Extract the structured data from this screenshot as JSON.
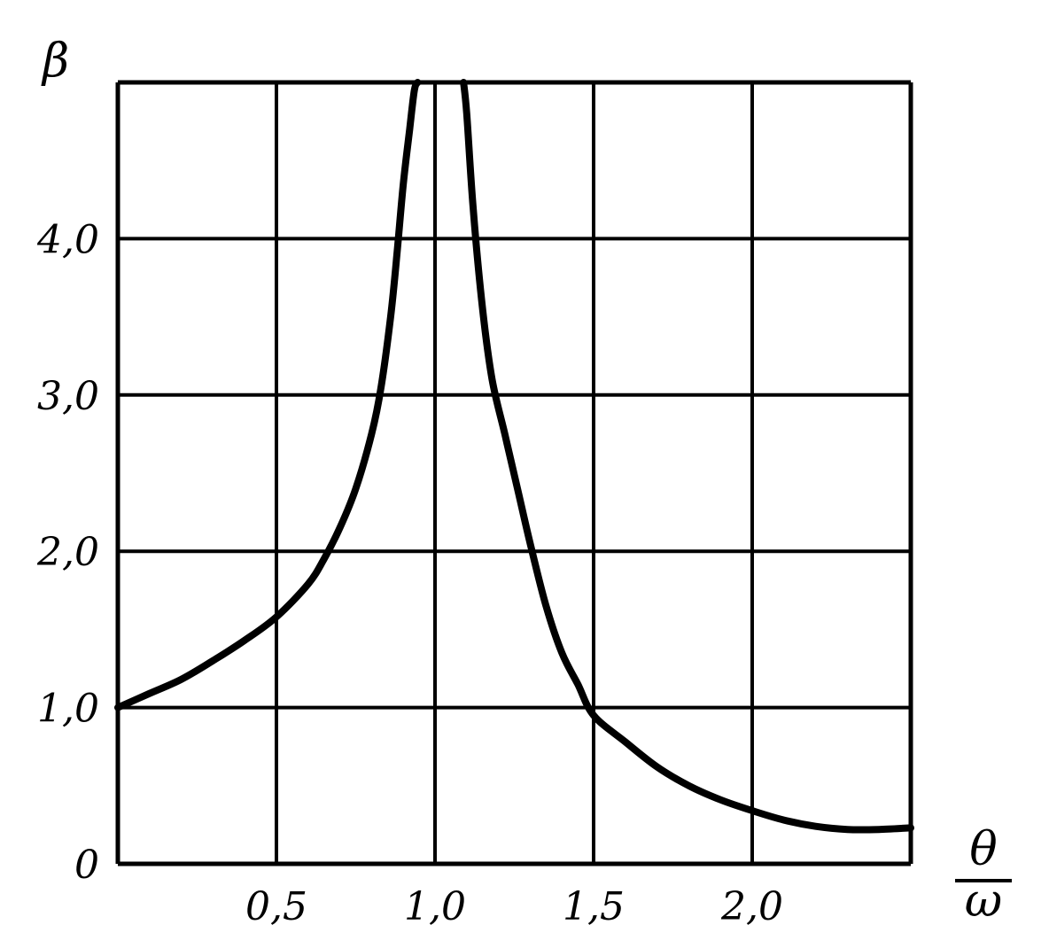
{
  "chart_data": {
    "type": "line",
    "title": "",
    "xlabel": {
      "numerator": "θ",
      "denominator": "ω"
    },
    "ylabel": "β",
    "xlim": [
      0,
      2.5
    ],
    "ylim": [
      0,
      5
    ],
    "grid": true,
    "x_ticks": [
      {
        "value": 0.5,
        "label": "0,5"
      },
      {
        "value": 1.0,
        "label": "1,0"
      },
      {
        "value": 1.5,
        "label": "1,5"
      },
      {
        "value": 2.0,
        "label": "2,0"
      }
    ],
    "y_ticks": [
      {
        "value": 0,
        "label": "0"
      },
      {
        "value": 1.0,
        "label": "1,0"
      },
      {
        "value": 2.0,
        "label": "2,0"
      },
      {
        "value": 3.0,
        "label": "3,0"
      },
      {
        "value": 4.0,
        "label": "4,0"
      }
    ],
    "series": [
      {
        "x": [
          0.0,
          0.1,
          0.2,
          0.3,
          0.4,
          0.5,
          0.6,
          0.65,
          0.7,
          0.75,
          0.8,
          0.83,
          0.86,
          0.88,
          0.9,
          0.92,
          0.935,
          0.945
        ],
        "y": [
          1.0,
          1.09,
          1.18,
          1.3,
          1.43,
          1.58,
          1.79,
          1.95,
          2.15,
          2.4,
          2.75,
          3.05,
          3.5,
          3.9,
          4.35,
          4.7,
          4.95,
          5.0
        ]
      },
      {
        "x": [
          1.09,
          1.1,
          1.12,
          1.15,
          1.18,
          1.22,
          1.26,
          1.3,
          1.35,
          1.4,
          1.45,
          1.5,
          1.6,
          1.7,
          1.8,
          1.9,
          2.0,
          2.1,
          2.2,
          2.3,
          2.4,
          2.5
        ],
        "y": [
          5.0,
          4.8,
          4.2,
          3.55,
          3.1,
          2.75,
          2.4,
          2.05,
          1.65,
          1.35,
          1.15,
          0.95,
          0.78,
          0.62,
          0.5,
          0.41,
          0.34,
          0.28,
          0.24,
          0.22,
          0.22,
          0.23
        ]
      }
    ]
  }
}
